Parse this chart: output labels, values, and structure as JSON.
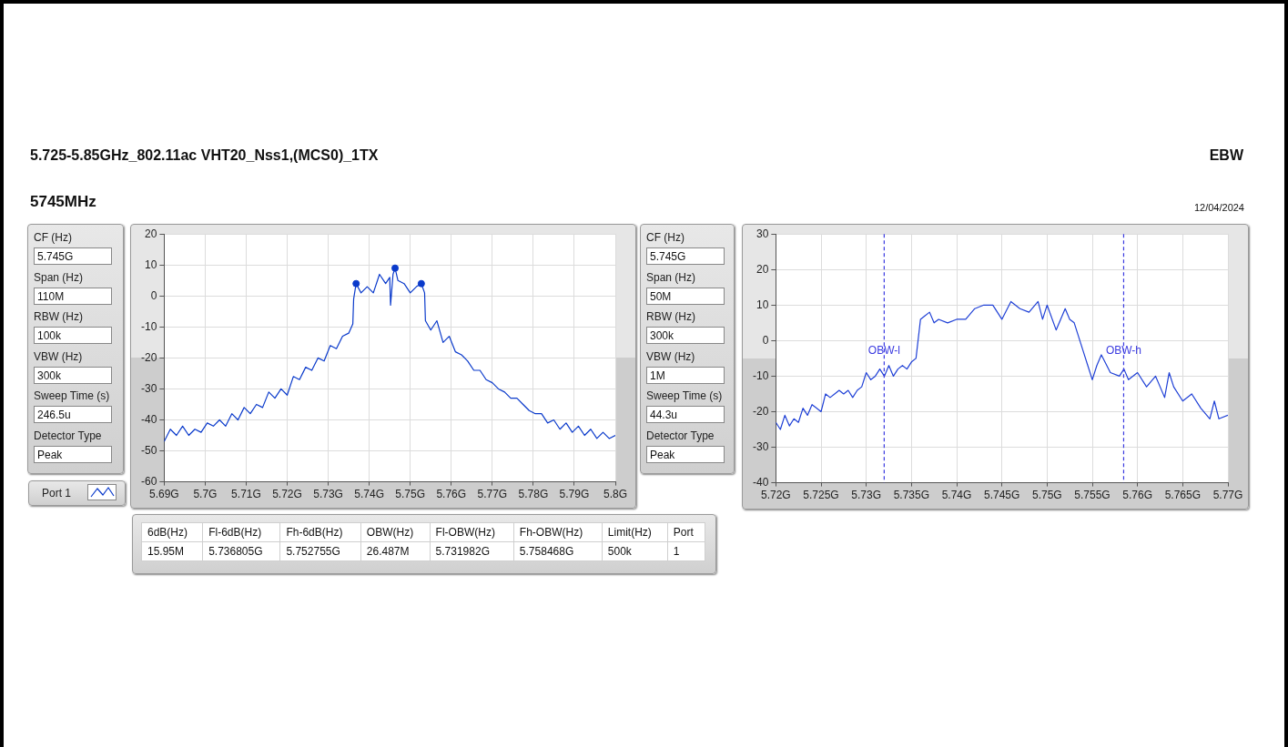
{
  "chart_data": [
    {
      "type": "other",
      "title": "5.725-5.85GHz_802.11ac VHT20_Nss1,(MCS0)_1TX",
      "subtitle": "5745MHz",
      "annotations": [
        "EBW",
        "12/04/2024"
      ]
    },
    {
      "type": "other",
      "annotations": [
        "CF (Hz)",
        "5.745G",
        "Span (Hz)",
        "110M",
        "RBW (Hz)",
        "100k",
        "VBW (Hz)",
        "300k",
        "Sweep Time (s)",
        "246.5u",
        "Detector Type",
        "Peak"
      ]
    },
    {
      "type": "line",
      "legend": "bottom left",
      "grid": true,
      "xlim": [
        5.69,
        5.8
      ],
      "xticks": [
        {
          "value": 5.69,
          "label": "5.69G"
        },
        {
          "value": 5.7,
          "label": "5.7G"
        },
        {
          "value": 5.71,
          "label": "5.71G"
        },
        {
          "value": 5.72,
          "label": "5.72G"
        },
        {
          "value": 5.73,
          "label": "5.73G"
        },
        {
          "value": 5.74,
          "label": "5.74G"
        },
        {
          "value": 5.75,
          "label": "5.75G"
        },
        {
          "value": 5.76,
          "label": "5.76G"
        },
        {
          "value": 5.77,
          "label": "5.77G"
        },
        {
          "value": 5.78,
          "label": "5.78G"
        },
        {
          "value": 5.79,
          "label": "5.79G"
        },
        {
          "value": 5.8,
          "label": "5.8G"
        }
      ],
      "ylim": [
        -60,
        20
      ],
      "yticks": [
        -60,
        -50,
        -40,
        -30,
        -20,
        -10,
        0,
        10,
        20
      ],
      "series": [
        {
          "name": "Port 1",
          "color": "#0a3acb",
          "x": [
            5.69,
            5.6915,
            5.693,
            5.6945,
            5.696,
            5.6975,
            5.699,
            5.7005,
            5.702,
            5.7035,
            5.705,
            5.7065,
            5.708,
            5.7095,
            5.711,
            5.7125,
            5.714,
            5.7155,
            5.717,
            5.7185,
            5.72,
            5.7215,
            5.723,
            5.7245,
            5.726,
            5.7275,
            5.729,
            5.7305,
            5.732,
            5.7335,
            5.735,
            5.736,
            5.7362,
            5.7368,
            5.738,
            5.7395,
            5.741,
            5.7425,
            5.744,
            5.745,
            5.7452,
            5.7458,
            5.7463,
            5.747,
            5.7485,
            5.75,
            5.7515,
            5.7527,
            5.7535,
            5.7537,
            5.755,
            5.7565,
            5.758,
            5.7595,
            5.761,
            5.7625,
            5.764,
            5.7655,
            5.767,
            5.7685,
            5.77,
            5.7715,
            5.773,
            5.7745,
            5.776,
            5.7775,
            5.779,
            5.7805,
            5.782,
            5.7835,
            5.785,
            5.7865,
            5.788,
            5.7895,
            5.791,
            5.7925,
            5.794,
            5.7955,
            5.797,
            5.7985,
            5.8
          ],
          "values": [
            -47,
            -43,
            -45,
            -42,
            -45,
            -43,
            -44,
            -41,
            -42,
            -40,
            -42,
            -38,
            -40,
            -36,
            -38,
            -35,
            -36,
            -31,
            -33,
            -30,
            -32,
            -26,
            -27,
            -23,
            -24,
            -20,
            -21,
            -16,
            -17,
            -13,
            -12,
            -9,
            -1,
            4,
            1,
            3,
            1,
            7,
            4,
            6,
            -3,
            7,
            9,
            5,
            4,
            1,
            3,
            4,
            1,
            -8,
            -11,
            -8,
            -15,
            -13,
            -18,
            -19,
            -21,
            -24,
            -24,
            -27,
            -28,
            -30,
            -31,
            -33,
            -33,
            -35,
            -37,
            -38,
            -38,
            -41,
            -40,
            -43,
            -41,
            -44,
            -42,
            -45,
            -43,
            -46,
            -44,
            -46,
            -45
          ]
        },
        {
          "type": "scatter",
          "marker": "circle",
          "color": "#0a3acb",
          "x": [
            5.7368,
            5.7463,
            5.7527
          ],
          "values": [
            4,
            9,
            4
          ]
        }
      ]
    },
    {
      "type": "other",
      "annotations": [
        "CF (Hz)",
        "5.745G",
        "Span (Hz)",
        "50M",
        "RBW (Hz)",
        "300k",
        "VBW (Hz)",
        "1M",
        "Sweep Time (s)",
        "44.3u",
        "Detector Type",
        "Peak"
      ]
    },
    {
      "type": "line",
      "grid": true,
      "xlim": [
        5.72,
        5.77
      ],
      "xticks": [
        {
          "value": 5.72,
          "label": "5.72G"
        },
        {
          "value": 5.725,
          "label": "5.725G"
        },
        {
          "value": 5.73,
          "label": "5.73G"
        },
        {
          "value": 5.735,
          "label": "5.735G"
        },
        {
          "value": 5.74,
          "label": "5.74G"
        },
        {
          "value": 5.745,
          "label": "5.745G"
        },
        {
          "value": 5.75,
          "label": "5.75G"
        },
        {
          "value": 5.755,
          "label": "5.755G"
        },
        {
          "value": 5.76,
          "label": "5.76G"
        },
        {
          "value": 5.765,
          "label": "5.765G"
        },
        {
          "value": 5.77,
          "label": "5.77G"
        }
      ],
      "ylim": [
        -40,
        30
      ],
      "yticks": [
        -40,
        -30,
        -20,
        -10,
        0,
        10,
        20,
        30
      ],
      "ref_lines": [
        {
          "axis": "x",
          "value": 5.731982,
          "label": "OBW-l",
          "color": "#3a3ae0",
          "line_style": "dashed"
        },
        {
          "axis": "x",
          "value": 5.758468,
          "label": "OBW-h",
          "color": "#3a3ae0",
          "line_style": "dashed"
        }
      ],
      "series": [
        {
          "color": "#1f40d6",
          "x": [
            5.72,
            5.7205,
            5.721,
            5.7215,
            5.722,
            5.7225,
            5.723,
            5.7235,
            5.724,
            5.7245,
            5.725,
            5.7255,
            5.726,
            5.7265,
            5.727,
            5.7275,
            5.728,
            5.7285,
            5.729,
            5.7295,
            5.73,
            5.7305,
            5.731,
            5.7315,
            5.732,
            5.7325,
            5.733,
            5.7335,
            5.734,
            5.7345,
            5.735,
            5.7355,
            5.736,
            5.7365,
            5.737,
            5.7375,
            5.738,
            5.739,
            5.74,
            5.741,
            5.742,
            5.743,
            5.744,
            5.745,
            5.746,
            5.747,
            5.748,
            5.749,
            5.7495,
            5.75,
            5.751,
            5.752,
            5.7525,
            5.753,
            5.754,
            5.7545,
            5.755,
            5.7555,
            5.756,
            5.757,
            5.758,
            5.7585,
            5.759,
            5.76,
            5.761,
            5.762,
            5.763,
            5.7635,
            5.764,
            5.765,
            5.766,
            5.767,
            5.768,
            5.7685,
            5.769,
            5.77
          ],
          "values": [
            -23,
            -25,
            -21,
            -24,
            -22,
            -23,
            -19,
            -21,
            -18,
            -19,
            -20,
            -15,
            -16,
            -15,
            -14,
            -15,
            -14,
            -16,
            -14,
            -13,
            -9,
            -11,
            -10,
            -8,
            -10,
            -7,
            -10,
            -8,
            -7,
            -8,
            -6,
            -5,
            6,
            7,
            8,
            5,
            6,
            5,
            6,
            6,
            9,
            10,
            10,
            6,
            11,
            9,
            8,
            11,
            6,
            10,
            3,
            9,
            6,
            5,
            -3,
            -7,
            -11,
            -7,
            -4,
            -9,
            -10,
            -8,
            -11,
            -9,
            -13,
            -10,
            -16,
            -9,
            -13,
            -17,
            -15,
            -19,
            -22,
            -17,
            -22,
            -21
          ]
        }
      ]
    },
    {
      "type": "other",
      "annotations": [
        "6dB(Hz)",
        "Fl-6dB(Hz)",
        "Fh-6dB(Hz)",
        "OBW(Hz)",
        "Fl-OBW(Hz)",
        "Fh-OBW(Hz)",
        "Limit(Hz)",
        "Port",
        "15.95M",
        "5.736805G",
        "5.752755G",
        "26.487M",
        "5.731982G",
        "5.758468G",
        "500k",
        "1"
      ]
    }
  ]
}
